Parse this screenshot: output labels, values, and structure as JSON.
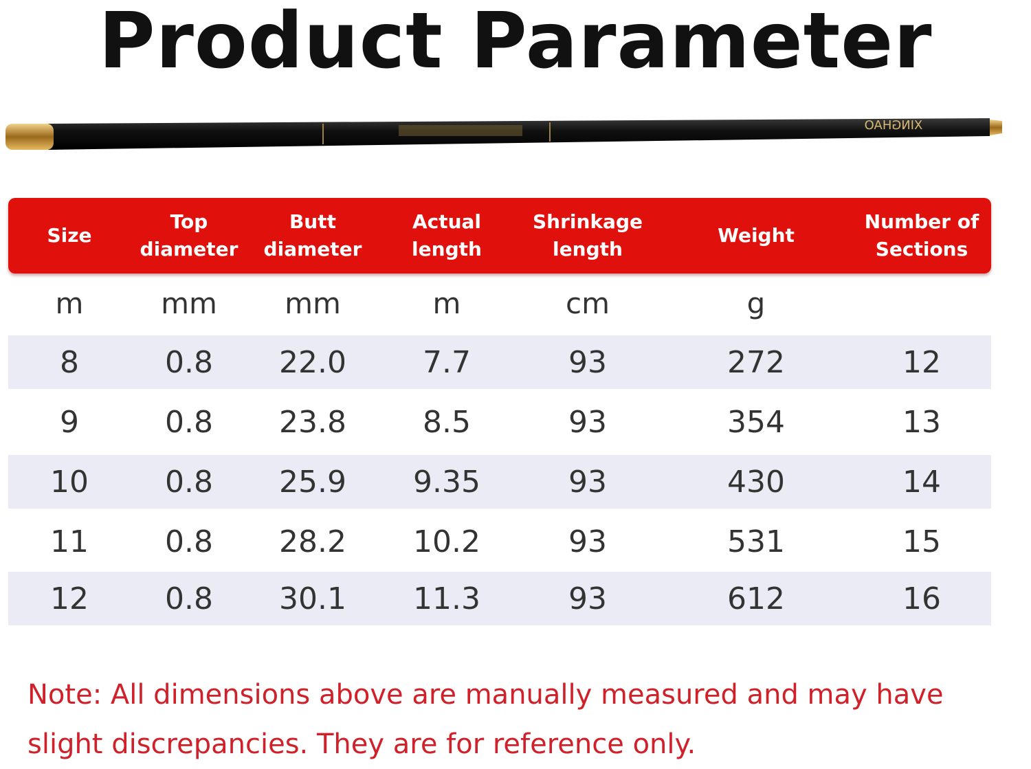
{
  "header": {
    "title": "Product Parameter"
  },
  "rod": {
    "brand": "XINGHAO"
  },
  "table": {
    "columns": [
      "Size",
      "Top diameter",
      "Butt diameter",
      "Actual length",
      "Shrinkage length",
      "Weight",
      "Number of Sections"
    ],
    "units": [
      "m",
      "mm",
      "mm",
      "m",
      "cm",
      "g"
    ],
    "rows": [
      [
        "8",
        "0.8",
        "22.0",
        "7.7",
        "93",
        "272",
        "12"
      ],
      [
        "9",
        "0.8",
        "23.8",
        "8.5",
        "93",
        "354",
        "13"
      ],
      [
        "10",
        "0.8",
        "25.9",
        "9.35",
        "93",
        "430",
        "14"
      ],
      [
        "11",
        "0.8",
        "28.2",
        "10.2",
        "93",
        "531",
        "15"
      ],
      [
        "12",
        "0.8",
        "30.1",
        "11.3",
        "93",
        "612",
        "16"
      ]
    ]
  },
  "note": "Note: All dimensions above are manually measured and may have slight discrepancies. They are for reference only."
}
